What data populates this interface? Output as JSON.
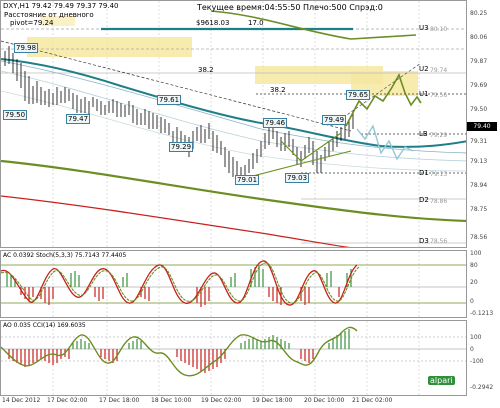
{
  "header": {
    "symbol": "DXY,H1",
    "ohlc": "79.42 79.49 79.37 79.40",
    "server_time_text": "Текущее время:04:55:50 Плечо:500 Спрэд:0",
    "distance_text": "Расстояние от дневного",
    "pivot_text": "pivot=79.24",
    "price_text": "$9618.03",
    "corner_number": "17.0"
  },
  "main_chart": {
    "current_price": "79.40",
    "price_ticks": [
      "80.25",
      "80.06",
      "79.87",
      "79.69",
      "79.50",
      "79.31",
      "79.13",
      "78.94",
      "78.75",
      "78.56"
    ],
    "levels": [
      {
        "name": "U3",
        "price": "80.10"
      },
      {
        "name": "U2",
        "price": "79.74"
      },
      {
        "name": "U1",
        "price": "79.56"
      },
      {
        "name": "LB",
        "price": "79.29"
      },
      {
        "name": "D1",
        "price": "79.13"
      },
      {
        "name": "D2",
        "price": "78.86"
      },
      {
        "name": "D3",
        "price": "78.56"
      }
    ],
    "fib_labels": [
      "38.2",
      "38.2"
    ],
    "price_labels": [
      "79.98",
      "79.50",
      "79.47",
      "79.61",
      "79.29",
      "79.46",
      "79.01",
      "79.03",
      "79.49",
      "79.65"
    ],
    "colors": {
      "teal": "#1f7f86",
      "olive": "#6b8e23",
      "red": "#c8201c",
      "zone": "#f6e7a0"
    }
  },
  "stoch_panel": {
    "header": "AC 0.0392  Stoch(5,3,3) 75.7143 77.4405",
    "ticks": [
      "100",
      "80",
      "20",
      "0",
      "-0.1213"
    ]
  },
  "ao_panel": {
    "header": "AO 0.035  CCI(14) 169.6035",
    "ticks": [
      "100",
      "0",
      "-100",
      "-0.2942"
    ]
  },
  "x_axis": [
    "14 Dec 2012",
    "17 Dec 02:00",
    "17 Dec 18:00",
    "18 Dec 10:00",
    "19 Dec 02:00",
    "19 Dec 18:00",
    "20 Dec 10:00",
    "21 Dec 02:00"
  ],
  "watermark": "alpari"
}
